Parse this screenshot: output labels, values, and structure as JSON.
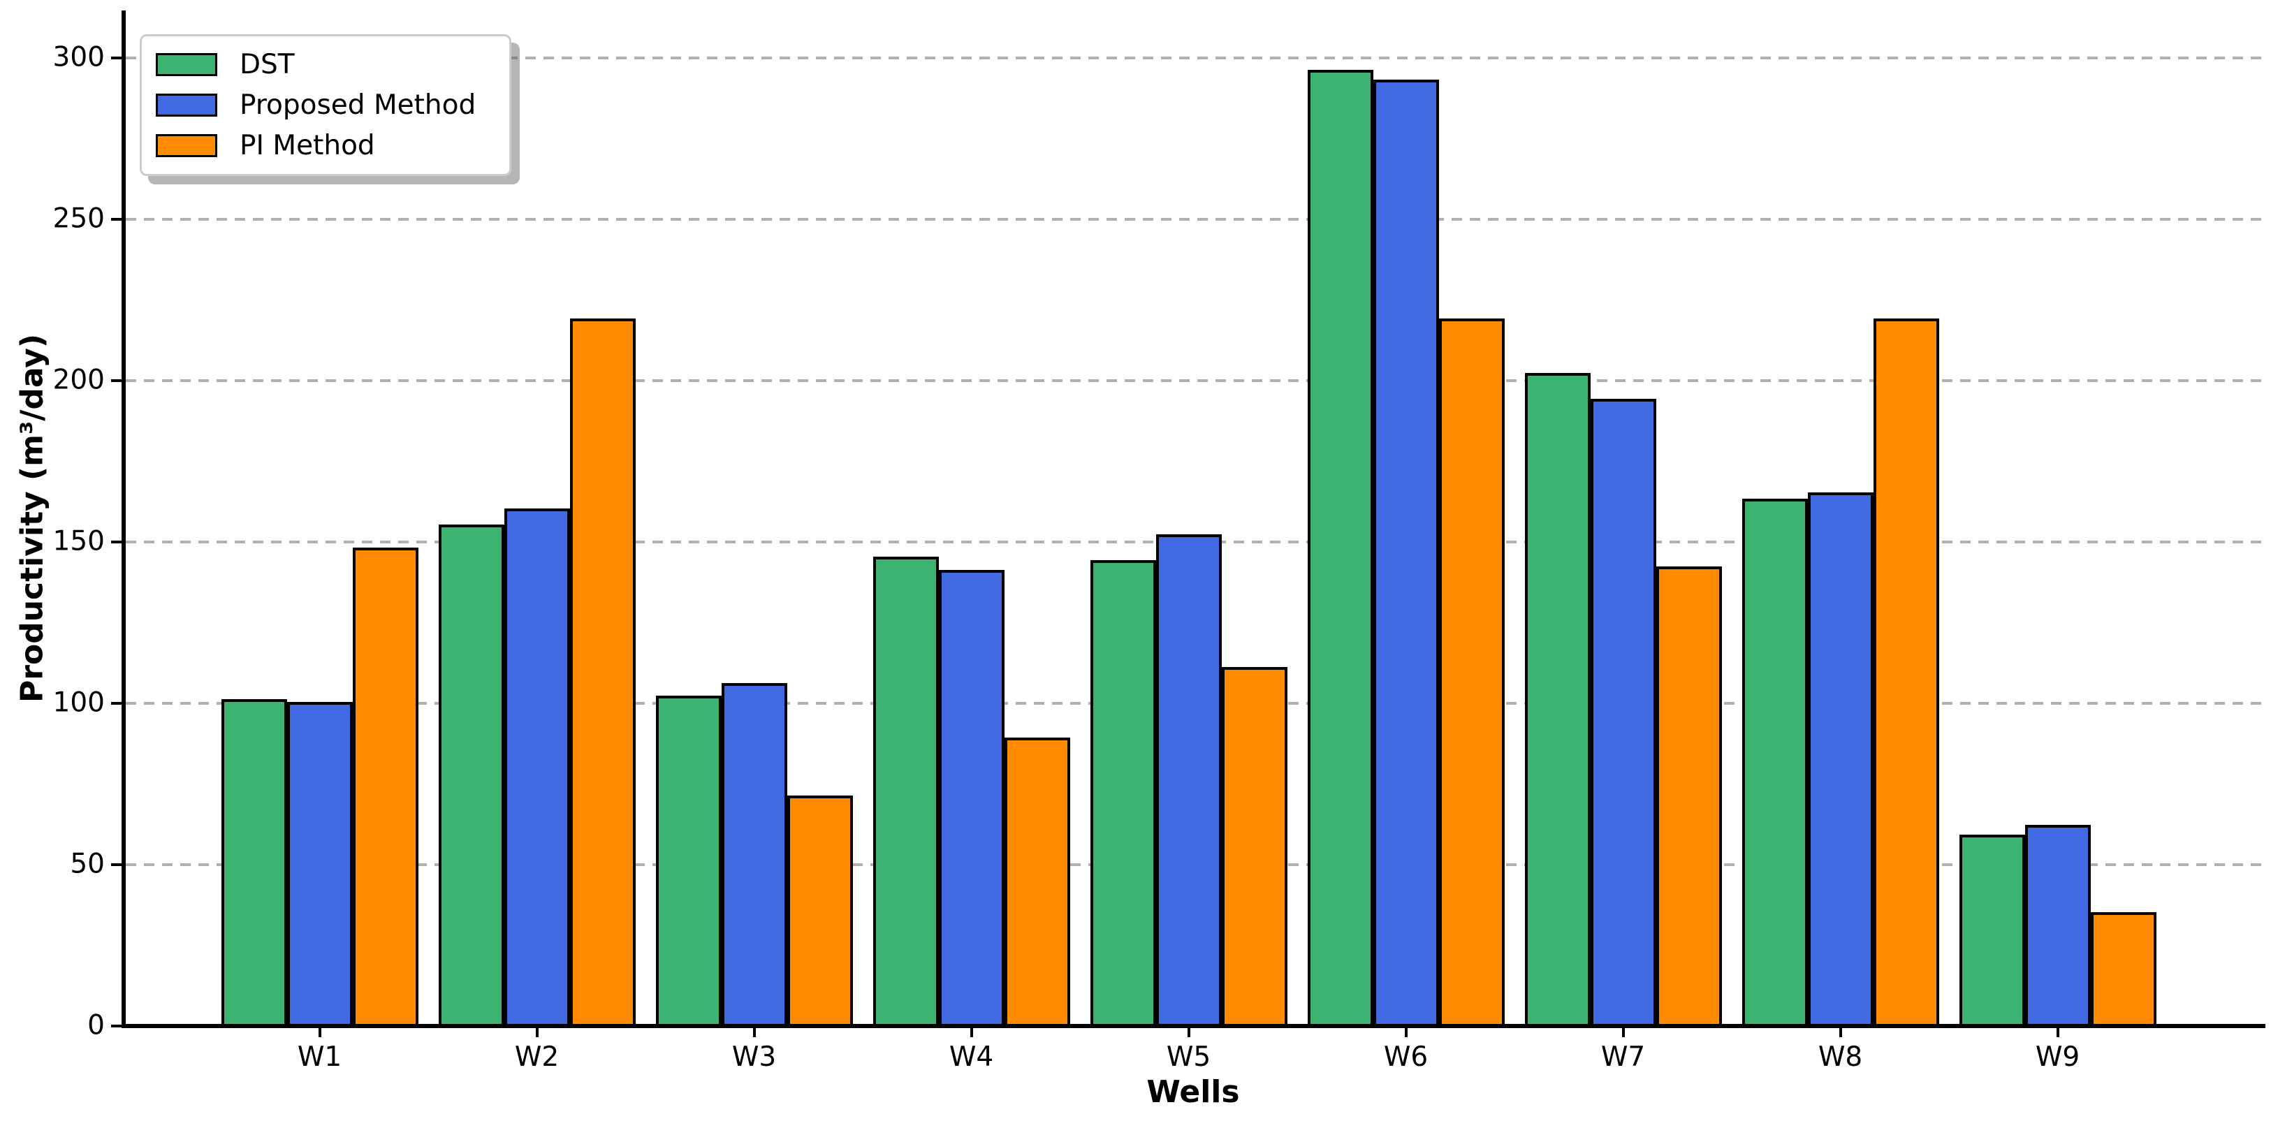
{
  "chart_data": {
    "type": "bar",
    "title": "",
    "categories": [
      "W1",
      "W2",
      "W3",
      "W4",
      "W5",
      "W6",
      "W7",
      "W8",
      "W9"
    ],
    "series": [
      {
        "name": "DST",
        "color": "#3CB371",
        "values": [
          102,
          156,
          103,
          146,
          145,
          297,
          203,
          164,
          60
        ]
      },
      {
        "name": "Proposed Method",
        "color": "#4169E1",
        "values": [
          101,
          161,
          107,
          142,
          153,
          294,
          195,
          166,
          63
        ]
      },
      {
        "name": "PI Method",
        "color": "#FF8C00",
        "values": [
          149,
          220,
          72,
          90,
          112,
          220,
          143,
          220,
          36
        ]
      }
    ],
    "xlabel": "Wells",
    "ylabel": "Productivity (m³/day)",
    "ylim": [
      0,
      300
    ],
    "yticks": [
      0,
      50,
      100,
      150,
      200,
      250,
      300
    ],
    "grid": "horizontal dashed",
    "legend_position": "upper left",
    "bar_edge_color": "#000000",
    "gridline_color": "#b0b0b0",
    "axis_color": "#000000",
    "background_color": "#ffffff"
  }
}
